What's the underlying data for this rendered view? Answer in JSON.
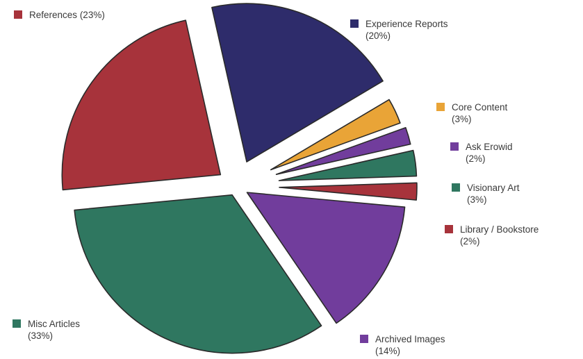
{
  "chart_data": {
    "type": "pie",
    "exploded": true,
    "slices": [
      {
        "label": "References",
        "pct_text": "(23%)",
        "value": 23,
        "color": "#a7333b"
      },
      {
        "label": "Experience Reports",
        "pct_text": "(20%)",
        "value": 20,
        "color": "#2e2c6b"
      },
      {
        "label": "Core Content",
        "pct_text": "(3%)",
        "value": 3,
        "color": "#e9a437"
      },
      {
        "label": "Ask Erowid",
        "pct_text": "(2%)",
        "value": 2,
        "color": "#713d9c"
      },
      {
        "label": "Visionary Art",
        "pct_text": "(3%)",
        "value": 3,
        "color": "#2f7760"
      },
      {
        "label": "Library / Bookstore",
        "pct_text": "(2%)",
        "value": 2,
        "color": "#a7333b"
      },
      {
        "label": "Archived Images",
        "pct_text": "(14%)",
        "value": 14,
        "color": "#713d9c"
      },
      {
        "label": "Misc Articles",
        "pct_text": "(33%)",
        "value": 33,
        "color": "#2f7760"
      }
    ]
  }
}
